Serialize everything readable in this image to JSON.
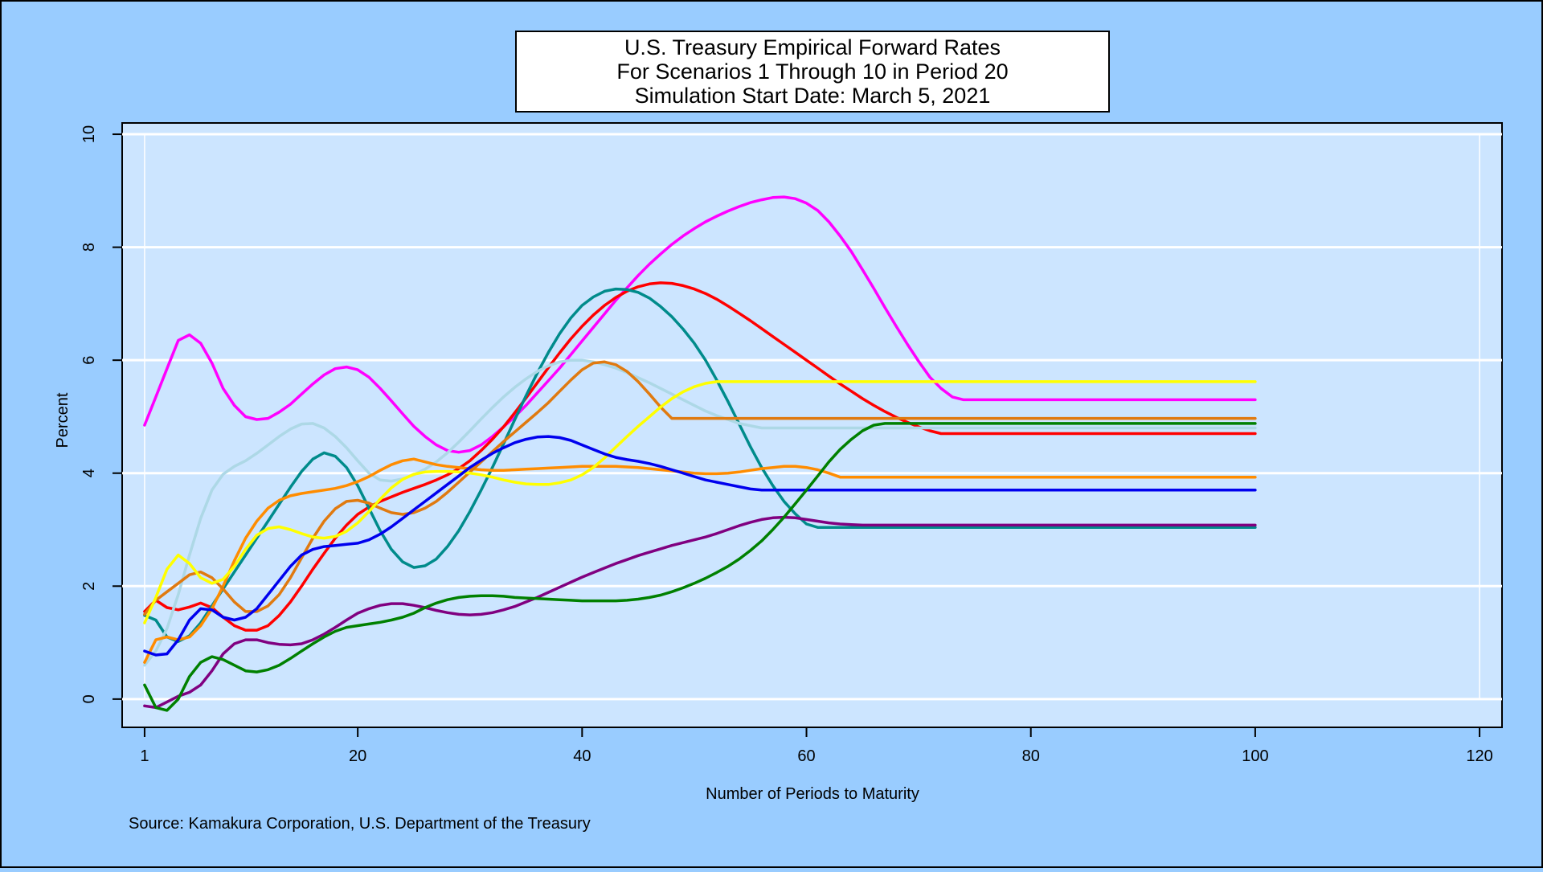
{
  "chart_data": {
    "type": "line",
    "title": [
      "U.S. Treasury Empirical Forward Rates",
      "For Scenarios 1 Through 10 in Period 20",
      "Simulation Start Date: March 5, 2021"
    ],
    "xlabel": "Number of Periods to Maturity",
    "ylabel": "Percent",
    "source": "Source: Kamakura Corporation, U.S. Department of the Treasury",
    "xlim": [
      -1,
      122
    ],
    "ylim": [
      -0.5,
      10.2
    ],
    "xticks": [
      1,
      20,
      40,
      60,
      80,
      100,
      120
    ],
    "yticks": [
      0,
      2,
      4,
      6,
      8,
      10
    ],
    "grid": true,
    "legend": "none",
    "x": [
      1,
      2,
      3,
      4,
      5,
      6,
      7,
      8,
      9,
      10,
      11,
      12,
      13,
      14,
      15,
      16,
      17,
      18,
      19,
      20,
      21,
      22,
      23,
      24,
      25,
      26,
      27,
      28,
      29,
      30,
      31,
      32,
      33,
      34,
      35,
      36,
      37,
      38,
      39,
      40,
      41,
      42,
      43,
      44,
      45,
      46,
      47,
      48,
      49,
      50,
      51,
      52,
      53,
      54,
      55,
      56,
      57,
      58,
      59,
      60,
      61,
      62,
      63,
      64,
      65,
      66,
      67,
      68,
      69,
      70,
      71,
      72,
      73,
      74,
      75,
      76,
      77,
      78,
      79,
      80,
      81,
      82,
      83,
      84,
      85,
      86,
      87,
      88,
      89,
      90,
      91,
      92,
      93,
      94,
      95,
      96,
      97,
      98,
      99,
      100
    ],
    "series": [
      {
        "color": "#ff00ff",
        "values": [
          4.85,
          5.35,
          5.85,
          6.35,
          6.45,
          6.3,
          5.95,
          5.5,
          5.2,
          5.0,
          4.95,
          4.97,
          5.08,
          5.22,
          5.4,
          5.58,
          5.74,
          5.85,
          5.88,
          5.83,
          5.7,
          5.5,
          5.28,
          5.05,
          4.83,
          4.65,
          4.5,
          4.4,
          4.37,
          4.4,
          4.5,
          4.65,
          4.82,
          5.0,
          5.2,
          5.42,
          5.64,
          5.86,
          6.1,
          6.34,
          6.58,
          6.82,
          7.06,
          7.28,
          7.5,
          7.7,
          7.88,
          8.05,
          8.2,
          8.33,
          8.45,
          8.55,
          8.64,
          8.72,
          8.79,
          8.84,
          8.88,
          8.89,
          8.86,
          8.78,
          8.65,
          8.45,
          8.2,
          7.92,
          7.6,
          7.27,
          6.93,
          6.6,
          6.28,
          5.98,
          5.7,
          5.5,
          5.35,
          5.3,
          5.3,
          5.3,
          5.3,
          5.3,
          5.3,
          5.3,
          5.3,
          5.3,
          5.3,
          5.3,
          5.3,
          5.3,
          5.3,
          5.3,
          5.3,
          5.3,
          5.3,
          5.3,
          5.3,
          5.3,
          5.3,
          5.3,
          5.3,
          5.3,
          5.3,
          5.3
        ]
      },
      {
        "color": "#ff0000",
        "values": [
          1.55,
          1.75,
          1.62,
          1.58,
          1.63,
          1.7,
          1.62,
          1.45,
          1.3,
          1.22,
          1.22,
          1.3,
          1.48,
          1.72,
          2.0,
          2.3,
          2.58,
          2.85,
          3.08,
          3.27,
          3.4,
          3.5,
          3.58,
          3.66,
          3.73,
          3.8,
          3.88,
          3.97,
          4.08,
          4.22,
          4.4,
          4.6,
          4.82,
          5.07,
          5.33,
          5.6,
          5.87,
          6.13,
          6.38,
          6.6,
          6.8,
          6.97,
          7.11,
          7.22,
          7.3,
          7.35,
          7.37,
          7.36,
          7.32,
          7.26,
          7.18,
          7.08,
          6.96,
          6.83,
          6.7,
          6.56,
          6.42,
          6.28,
          6.14,
          6.0,
          5.86,
          5.72,
          5.58,
          5.45,
          5.32,
          5.2,
          5.09,
          4.99,
          4.9,
          4.82,
          4.75,
          4.7,
          4.7,
          4.7,
          4.7,
          4.7,
          4.7,
          4.7,
          4.7,
          4.7,
          4.7,
          4.7,
          4.7,
          4.7,
          4.7,
          4.7,
          4.7,
          4.7,
          4.7,
          4.7,
          4.7,
          4.7,
          4.7,
          4.7,
          4.7,
          4.7,
          4.7,
          4.7,
          4.7,
          4.7
        ]
      },
      {
        "color": "#008b8b",
        "values": [
          1.48,
          1.4,
          1.1,
          1.02,
          1.12,
          1.35,
          1.65,
          1.95,
          2.25,
          2.55,
          2.85,
          3.15,
          3.45,
          3.75,
          4.03,
          4.25,
          4.36,
          4.3,
          4.1,
          3.78,
          3.38,
          2.98,
          2.65,
          2.43,
          2.33,
          2.36,
          2.48,
          2.7,
          2.98,
          3.32,
          3.7,
          4.1,
          4.52,
          4.95,
          5.37,
          5.77,
          6.14,
          6.47,
          6.75,
          6.97,
          7.12,
          7.22,
          7.26,
          7.25,
          7.2,
          7.1,
          6.95,
          6.77,
          6.55,
          6.3,
          6.0,
          5.65,
          5.27,
          4.87,
          4.47,
          4.1,
          3.78,
          3.5,
          3.28,
          3.1,
          3.04,
          3.04,
          3.04,
          3.04,
          3.04,
          3.04,
          3.04,
          3.04,
          3.04,
          3.04,
          3.04,
          3.04,
          3.04,
          3.04,
          3.04,
          3.04,
          3.04,
          3.04,
          3.04,
          3.04,
          3.04,
          3.04,
          3.04,
          3.04,
          3.04,
          3.04,
          3.04,
          3.04,
          3.04,
          3.04,
          3.04,
          3.04,
          3.04,
          3.04,
          3.04,
          3.04,
          3.04,
          3.04,
          3.04,
          3.04
        ]
      },
      {
        "color": "#add8e6",
        "values": [
          0.6,
          0.85,
          1.25,
          1.85,
          2.55,
          3.2,
          3.7,
          3.98,
          4.12,
          4.22,
          4.35,
          4.5,
          4.65,
          4.78,
          4.87,
          4.88,
          4.8,
          4.65,
          4.45,
          4.22,
          4.0,
          3.88,
          3.86,
          3.9,
          3.97,
          4.07,
          4.2,
          4.36,
          4.55,
          4.75,
          4.96,
          5.16,
          5.35,
          5.52,
          5.67,
          5.8,
          5.9,
          5.97,
          6.0,
          6.0,
          5.97,
          5.92,
          5.86,
          5.78,
          5.69,
          5.6,
          5.5,
          5.4,
          5.3,
          5.2,
          5.1,
          5.02,
          4.95,
          4.88,
          4.84,
          4.8,
          4.8,
          4.8,
          4.8,
          4.8,
          4.8,
          4.8,
          4.8,
          4.8,
          4.8,
          4.8,
          4.8,
          4.8,
          4.8,
          4.8,
          4.8,
          4.8,
          4.8,
          4.8,
          4.8,
          4.8,
          4.8,
          4.8,
          4.8,
          4.8,
          4.8,
          4.8,
          4.8,
          4.8,
          4.8,
          4.8,
          4.8,
          4.8,
          4.8,
          4.8,
          4.8,
          4.8,
          4.8,
          4.8,
          4.8,
          4.8,
          4.8,
          4.8,
          4.8,
          4.8
        ]
      },
      {
        "color": "#ff8c00",
        "values": [
          0.65,
          1.05,
          1.1,
          1.05,
          1.1,
          1.3,
          1.6,
          2.0,
          2.45,
          2.85,
          3.15,
          3.38,
          3.52,
          3.6,
          3.64,
          3.67,
          3.7,
          3.73,
          3.78,
          3.85,
          3.94,
          4.05,
          4.15,
          4.22,
          4.25,
          4.2,
          4.15,
          4.12,
          4.1,
          4.08,
          4.06,
          4.05,
          4.05,
          4.06,
          4.07,
          4.08,
          4.09,
          4.1,
          4.11,
          4.12,
          4.12,
          4.12,
          4.12,
          4.11,
          4.1,
          4.08,
          4.06,
          4.04,
          4.02,
          4.0,
          3.99,
          3.99,
          4.0,
          4.02,
          4.05,
          4.08,
          4.1,
          4.12,
          4.12,
          4.1,
          4.06,
          4.0,
          3.93,
          3.93,
          3.93,
          3.93,
          3.93,
          3.93,
          3.93,
          3.93,
          3.93,
          3.93,
          3.93,
          3.93,
          3.93,
          3.93,
          3.93,
          3.93,
          3.93,
          3.93,
          3.93,
          3.93,
          3.93,
          3.93,
          3.93,
          3.93,
          3.93,
          3.93,
          3.93,
          3.93,
          3.93,
          3.93,
          3.93,
          3.93,
          3.93,
          3.93,
          3.93,
          3.93,
          3.93,
          3.93
        ]
      },
      {
        "color": "#e07a10",
        "values": [
          1.5,
          1.75,
          1.9,
          2.05,
          2.2,
          2.25,
          2.15,
          1.95,
          1.72,
          1.55,
          1.55,
          1.65,
          1.85,
          2.15,
          2.5,
          2.85,
          3.15,
          3.37,
          3.5,
          3.52,
          3.47,
          3.38,
          3.3,
          3.27,
          3.3,
          3.38,
          3.5,
          3.66,
          3.84,
          4.02,
          4.2,
          4.38,
          4.56,
          4.73,
          4.9,
          5.07,
          5.25,
          5.45,
          5.65,
          5.83,
          5.95,
          5.97,
          5.92,
          5.8,
          5.62,
          5.4,
          5.17,
          4.97,
          4.97,
          4.97,
          4.97,
          4.97,
          4.97,
          4.97,
          4.97,
          4.97,
          4.97,
          4.97,
          4.97,
          4.97,
          4.97,
          4.97,
          4.97,
          4.97,
          4.97,
          4.97,
          4.97,
          4.97,
          4.97,
          4.97,
          4.97,
          4.97,
          4.97,
          4.97,
          4.97,
          4.97,
          4.97,
          4.97,
          4.97,
          4.97,
          4.97,
          4.97,
          4.97,
          4.97,
          4.97,
          4.97,
          4.97,
          4.97,
          4.97,
          4.97,
          4.97,
          4.97,
          4.97,
          4.97,
          4.97,
          4.97,
          4.97,
          4.97,
          4.97,
          4.97
        ]
      },
      {
        "color": "#ffff00",
        "values": [
          1.35,
          1.8,
          2.3,
          2.55,
          2.4,
          2.15,
          2.05,
          2.12,
          2.35,
          2.65,
          2.9,
          3.02,
          3.05,
          3.0,
          2.93,
          2.87,
          2.85,
          2.88,
          2.97,
          3.12,
          3.32,
          3.54,
          3.74,
          3.89,
          3.98,
          4.02,
          4.03,
          4.03,
          4.02,
          4.0,
          3.97,
          3.93,
          3.88,
          3.84,
          3.81,
          3.8,
          3.8,
          3.83,
          3.88,
          3.97,
          4.1,
          4.27,
          4.46,
          4.65,
          4.83,
          5.0,
          5.17,
          5.32,
          5.44,
          5.53,
          5.59,
          5.62,
          5.62,
          5.62,
          5.62,
          5.62,
          5.62,
          5.62,
          5.62,
          5.62,
          5.62,
          5.62,
          5.62,
          5.62,
          5.62,
          5.62,
          5.62,
          5.62,
          5.62,
          5.62,
          5.62,
          5.62,
          5.62,
          5.62,
          5.62,
          5.62,
          5.62,
          5.62,
          5.62,
          5.62,
          5.62,
          5.62,
          5.62,
          5.62,
          5.62,
          5.62,
          5.62,
          5.62,
          5.62,
          5.62,
          5.62,
          5.62,
          5.62,
          5.62,
          5.62,
          5.62,
          5.62,
          5.62,
          5.62,
          5.62
        ]
      },
      {
        "color": "#0000ee",
        "values": [
          0.85,
          0.78,
          0.8,
          1.05,
          1.4,
          1.6,
          1.58,
          1.45,
          1.4,
          1.45,
          1.6,
          1.85,
          2.1,
          2.35,
          2.55,
          2.65,
          2.7,
          2.72,
          2.74,
          2.76,
          2.82,
          2.92,
          3.05,
          3.2,
          3.35,
          3.5,
          3.65,
          3.8,
          3.95,
          4.1,
          4.23,
          4.35,
          4.45,
          4.54,
          4.6,
          4.64,
          4.65,
          4.63,
          4.58,
          4.5,
          4.42,
          4.34,
          4.28,
          4.24,
          4.21,
          4.17,
          4.12,
          4.06,
          4.0,
          3.94,
          3.88,
          3.84,
          3.8,
          3.76,
          3.72,
          3.7,
          3.7,
          3.7,
          3.7,
          3.7,
          3.7,
          3.7,
          3.7,
          3.7,
          3.7,
          3.7,
          3.7,
          3.7,
          3.7,
          3.7,
          3.7,
          3.7,
          3.7,
          3.7,
          3.7,
          3.7,
          3.7,
          3.7,
          3.7,
          3.7,
          3.7,
          3.7,
          3.7,
          3.7,
          3.7,
          3.7,
          3.7,
          3.7,
          3.7,
          3.7,
          3.7,
          3.7,
          3.7,
          3.7,
          3.7,
          3.7,
          3.7,
          3.7,
          3.7,
          3.7
        ]
      },
      {
        "color": "#800080",
        "values": [
          -0.12,
          -0.15,
          -0.05,
          0.05,
          0.12,
          0.25,
          0.5,
          0.8,
          0.98,
          1.05,
          1.05,
          1.0,
          0.97,
          0.96,
          0.98,
          1.05,
          1.15,
          1.27,
          1.4,
          1.52,
          1.6,
          1.66,
          1.69,
          1.69,
          1.66,
          1.62,
          1.57,
          1.53,
          1.5,
          1.49,
          1.5,
          1.53,
          1.58,
          1.64,
          1.72,
          1.8,
          1.89,
          1.98,
          2.07,
          2.16,
          2.24,
          2.32,
          2.4,
          2.47,
          2.54,
          2.6,
          2.66,
          2.72,
          2.77,
          2.82,
          2.87,
          2.93,
          3.0,
          3.07,
          3.13,
          3.18,
          3.21,
          3.22,
          3.21,
          3.18,
          3.15,
          3.12,
          3.1,
          3.09,
          3.08,
          3.08,
          3.08,
          3.08,
          3.08,
          3.08,
          3.08,
          3.08,
          3.08,
          3.08,
          3.08,
          3.08,
          3.08,
          3.08,
          3.08,
          3.08,
          3.08,
          3.08,
          3.08,
          3.08,
          3.08,
          3.08,
          3.08,
          3.08,
          3.08,
          3.08,
          3.08,
          3.08,
          3.08,
          3.08,
          3.08,
          3.08,
          3.08,
          3.08,
          3.08,
          3.08
        ]
      },
      {
        "color": "#008000",
        "values": [
          0.25,
          -0.15,
          -0.2,
          0.0,
          0.4,
          0.65,
          0.75,
          0.7,
          0.6,
          0.5,
          0.48,
          0.52,
          0.6,
          0.72,
          0.85,
          0.98,
          1.1,
          1.2,
          1.27,
          1.3,
          1.33,
          1.36,
          1.4,
          1.45,
          1.52,
          1.62,
          1.7,
          1.76,
          1.8,
          1.82,
          1.83,
          1.83,
          1.82,
          1.8,
          1.79,
          1.78,
          1.77,
          1.76,
          1.75,
          1.74,
          1.74,
          1.74,
          1.74,
          1.75,
          1.77,
          1.8,
          1.84,
          1.9,
          1.97,
          2.05,
          2.14,
          2.24,
          2.35,
          2.48,
          2.63,
          2.8,
          3.0,
          3.22,
          3.46,
          3.7,
          3.95,
          4.2,
          4.42,
          4.6,
          4.75,
          4.85,
          4.88,
          4.88,
          4.88,
          4.88,
          4.88,
          4.88,
          4.88,
          4.88,
          4.88,
          4.88,
          4.88,
          4.88,
          4.88,
          4.88,
          4.88,
          4.88,
          4.88,
          4.88,
          4.88,
          4.88,
          4.88,
          4.88,
          4.88,
          4.88,
          4.88,
          4.88,
          4.88,
          4.88,
          4.88,
          4.88,
          4.88,
          4.88,
          4.88,
          4.88
        ]
      }
    ]
  }
}
